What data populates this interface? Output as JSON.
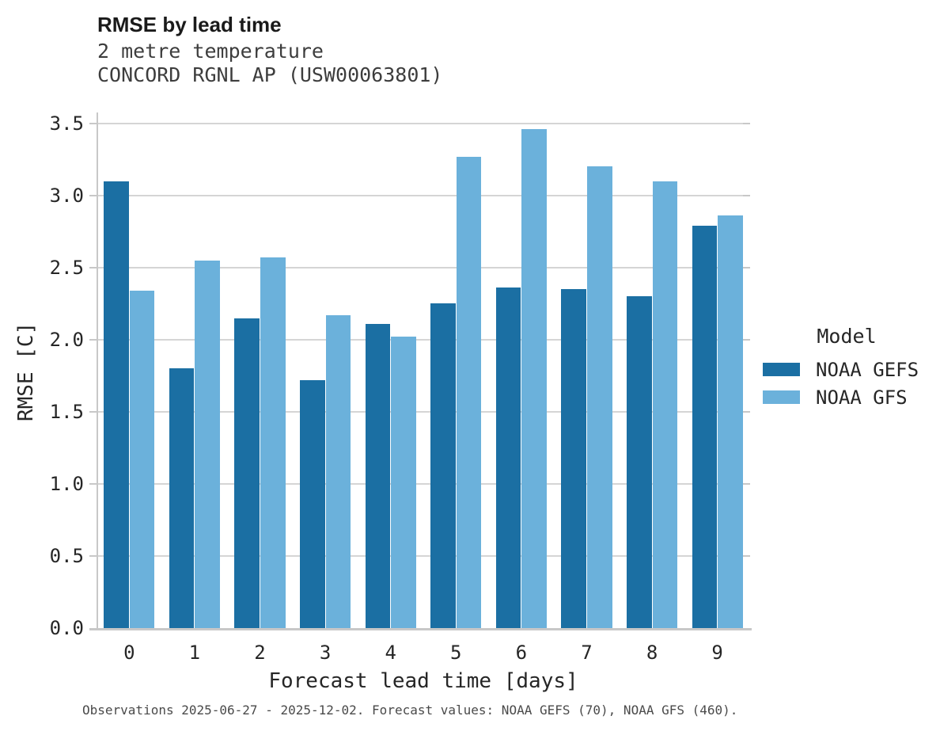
{
  "header": {
    "title": "RMSE by lead time",
    "subtitle_line1": "2 metre temperature",
    "subtitle_line2": "CONCORD RGNL AP (USW00063801)"
  },
  "legend": {
    "title": "Model",
    "items": [
      {
        "label": "NOAA GEFS",
        "color": "#1b6fa3"
      },
      {
        "label": "NOAA GFS",
        "color": "#6bb1db"
      }
    ]
  },
  "footer": {
    "note": "Observations 2025-06-27 - 2025-12-02. Forecast values: NOAA GEFS (70), NOAA GFS (460)."
  },
  "colors": {
    "gefs_bar": "#1b6fa3",
    "gfs_bar": "#6bb1db",
    "gridline": "#d5d5d5",
    "spine": "#c8c8c8",
    "background": "#ffffff"
  },
  "chart_data": {
    "type": "bar",
    "title": "RMSE by lead time",
    "subtitle": "2 metre temperature — CONCORD RGNL AP (USW00063801)",
    "xlabel": "Forecast lead time [days]",
    "ylabel": "RMSE [C]",
    "categories": [
      "0",
      "1",
      "2",
      "3",
      "4",
      "5",
      "6",
      "7",
      "8",
      "9"
    ],
    "series": [
      {
        "name": "NOAA GEFS",
        "color": "#1b6fa3",
        "values": [
          3.1,
          1.8,
          2.15,
          1.72,
          2.11,
          2.25,
          2.36,
          2.35,
          2.3,
          2.79
        ]
      },
      {
        "name": "NOAA GFS",
        "color": "#6bb1db",
        "values": [
          2.34,
          2.55,
          2.57,
          2.17,
          2.02,
          3.27,
          3.46,
          3.2,
          3.1,
          2.86
        ]
      }
    ],
    "ylim": [
      0,
      3.575
    ],
    "yticks": [
      0.0,
      0.5,
      1.0,
      1.5,
      2.0,
      2.5,
      3.0,
      3.5
    ],
    "grid": true,
    "legend_title": "Model",
    "legend_position": "right"
  }
}
